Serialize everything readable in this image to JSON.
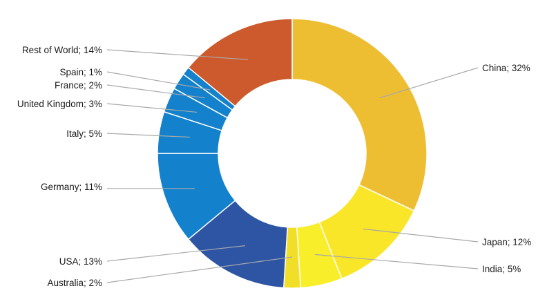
{
  "chart_data": {
    "type": "pie",
    "variant": "donut",
    "slices": [
      {
        "name": "China",
        "value": 32,
        "label": "China; 32%",
        "color": "#EEBE32"
      },
      {
        "name": "Japan",
        "value": 12,
        "label": "Japan; 12%",
        "color": "#FAE629"
      },
      {
        "name": "India",
        "value": 5,
        "label": "India; 5%",
        "color": "#F8EE2A"
      },
      {
        "name": "Australia",
        "value": 2,
        "label": "Australia; 2%",
        "color": "#F0DE28"
      },
      {
        "name": "USA",
        "value": 13,
        "label": "USA; 13%",
        "color": "#2E55A4"
      },
      {
        "name": "Germany",
        "value": 11,
        "label": "Germany; 11%",
        "color": "#1381CC"
      },
      {
        "name": "Italy",
        "value": 5,
        "label": "Italy; 5%",
        "color": "#1381CC"
      },
      {
        "name": "United Kingdom",
        "value": 3,
        "label": "United Kingdom; 3%",
        "color": "#1381CC"
      },
      {
        "name": "France",
        "value": 2,
        "label": "France; 2%",
        "color": "#1381CC"
      },
      {
        "name": "Spain",
        "value": 1,
        "label": "Spain; 1%",
        "color": "#1381CC"
      },
      {
        "name": "Rest of World",
        "value": 14,
        "label": "Rest of World; 14%",
        "color": "#CC5A2C"
      }
    ],
    "start_angle_deg": 0,
    "direction": "clockwise",
    "labels_position": "outside with leader lines"
  }
}
